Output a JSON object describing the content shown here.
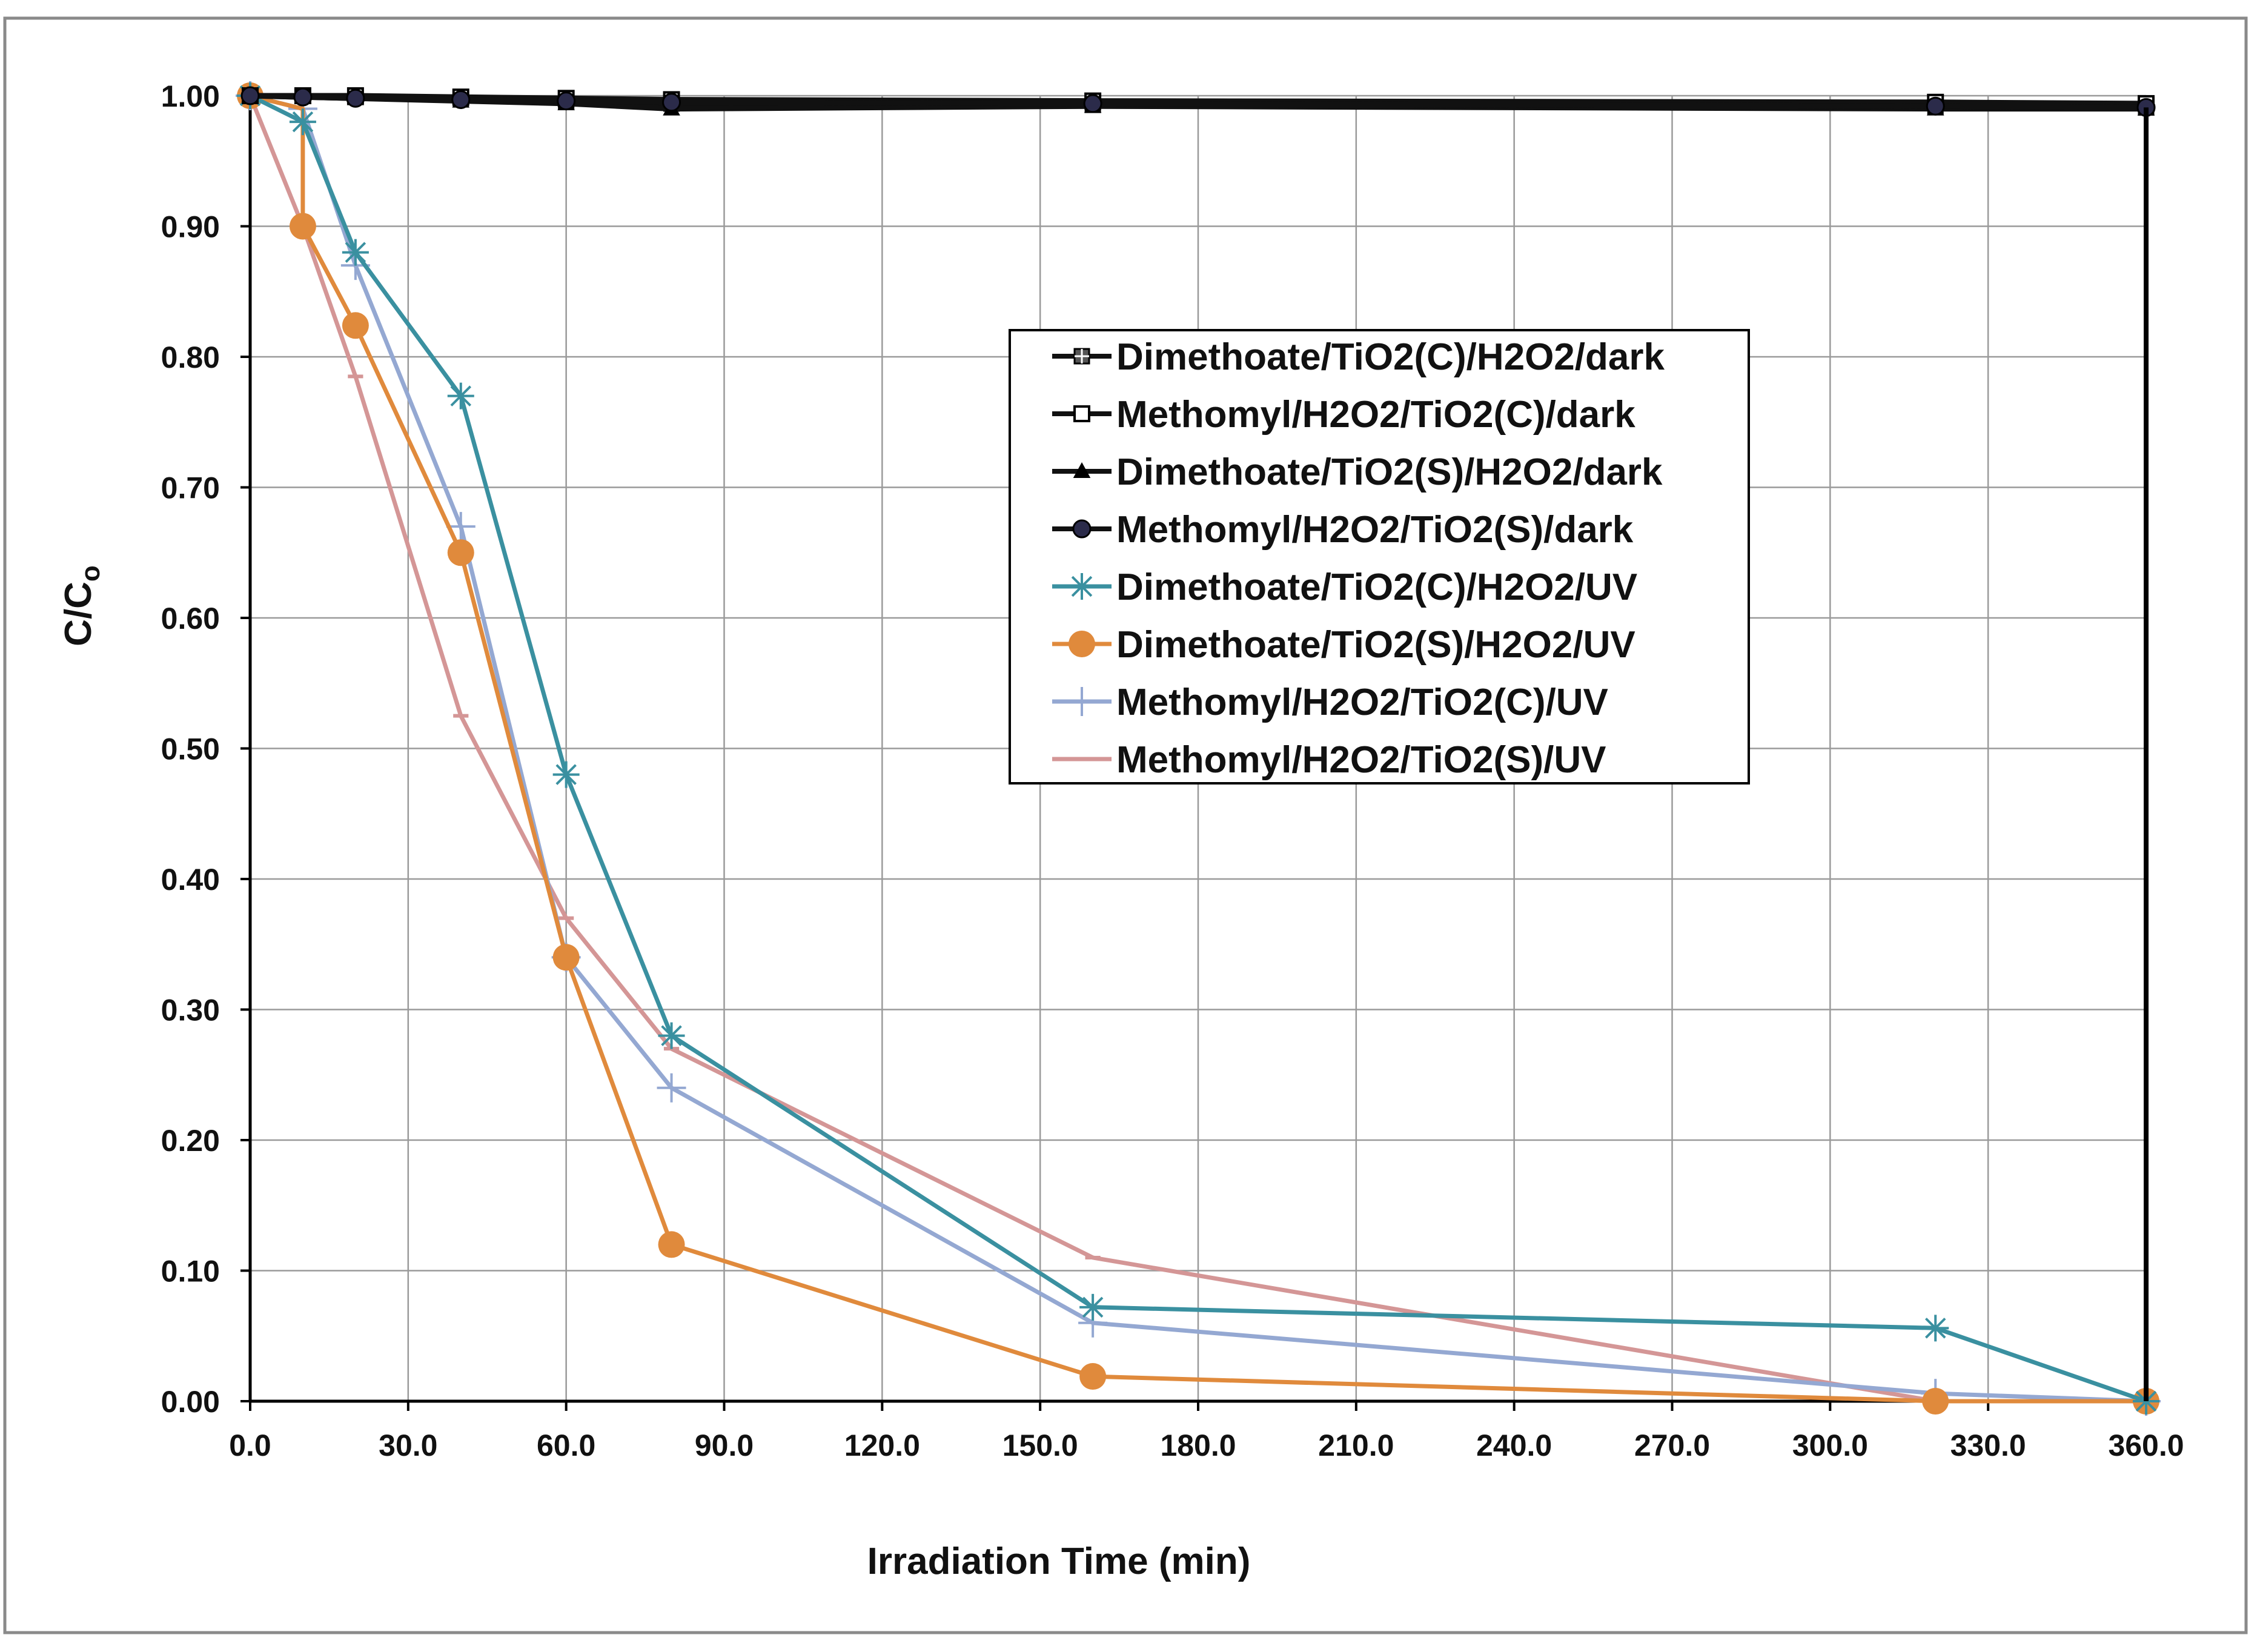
{
  "chart_data": {
    "type": "line",
    "title": "",
    "xlabel": "Irradiation Time (min)",
    "ylabel_main": "C/C",
    "ylabel_sub": "o",
    "xlim": [
      0,
      360
    ],
    "ylim": [
      0,
      1.0
    ],
    "xticks": [
      0,
      30,
      60,
      90,
      120,
      150,
      180,
      210,
      240,
      270,
      300,
      330,
      360
    ],
    "xtick_labels": [
      "0.0",
      "30.0",
      "60.0",
      "90.0",
      "120.0",
      "150.0",
      "180.0",
      "210.0",
      "240.0",
      "270.0",
      "300.0",
      "330.0",
      "360.0"
    ],
    "yticks": [
      0,
      0.1,
      0.2,
      0.3,
      0.4,
      0.5,
      0.6,
      0.7,
      0.8,
      0.9,
      1.0
    ],
    "ytick_labels": [
      "0.00",
      "0.10",
      "0.20",
      "0.30",
      "0.40",
      "0.50",
      "0.60",
      "0.70",
      "0.80",
      "0.90",
      "1.00"
    ],
    "grid": true,
    "legend_position": "center-right",
    "series": [
      {
        "name": "Dimethoate/TiO2(C)/H2O2/dark",
        "color": "#111111",
        "marker": "square-cross",
        "x": [
          0,
          10,
          20,
          40,
          60,
          80,
          160,
          320,
          360
        ],
        "y": [
          1.0,
          1.0,
          0.999,
          0.998,
          0.996,
          0.994,
          0.993,
          0.992,
          0.991
        ]
      },
      {
        "name": "Methomyl/H2O2/TiO2(C)/dark",
        "color": "#111111",
        "marker": "open-square",
        "x": [
          0,
          10,
          20,
          40,
          60,
          80,
          160,
          320,
          360
        ],
        "y": [
          1.0,
          1.0,
          1.0,
          0.999,
          0.998,
          0.997,
          0.996,
          0.995,
          0.994
        ]
      },
      {
        "name": "Dimethoate/TiO2(S)/H2O2/dark",
        "color": "#111111",
        "marker": "triangle",
        "x": [
          0,
          10,
          20,
          40,
          60,
          80,
          160,
          320,
          360
        ],
        "y": [
          1.0,
          0.999,
          0.998,
          0.996,
          0.994,
          0.99,
          0.992,
          0.99,
          0.99
        ]
      },
      {
        "name": "Methomyl/H2O2/TiO2(S)/dark",
        "color": "#111111",
        "marker": "dot",
        "x": [
          0,
          10,
          20,
          40,
          60,
          80,
          160,
          320,
          360
        ],
        "y": [
          1.0,
          0.999,
          0.998,
          0.997,
          0.996,
          0.995,
          0.994,
          0.992,
          0.991
        ]
      },
      {
        "name": "Dimethoate/TiO2(C)/H2O2/UV",
        "color": "#3a90a0",
        "marker": "asterisk",
        "x": [
          0,
          10,
          20,
          40,
          60,
          80,
          160,
          320,
          360
        ],
        "y": [
          1.0,
          0.98,
          0.88,
          0.77,
          0.48,
          0.28,
          0.072,
          0.056,
          0.0
        ]
      },
      {
        "name": "Dimethoate/TiO2(S)/H2O2/UV",
        "color": "#e08a3c",
        "marker": "big-dot",
        "x": [
          0,
          10,
          10,
          20,
          40,
          60,
          80,
          160,
          320,
          360
        ],
        "y": [
          1.0,
          0.99,
          0.9,
          0.824,
          0.65,
          0.34,
          0.12,
          0.019,
          0.0,
          0.0
        ]
      },
      {
        "name": "Methomyl/H2O2/TiO2(C)/UV",
        "color": "#94a8d2",
        "marker": "plus",
        "x": [
          0,
          10,
          20,
          40,
          60,
          80,
          160,
          320,
          360
        ],
        "y": [
          1.0,
          0.99,
          0.87,
          0.67,
          0.34,
          0.24,
          0.06,
          0.006,
          0.0
        ]
      },
      {
        "name": "Methomyl/H2O2/TiO2(S)/UV",
        "color": "#d49696",
        "marker": "dash",
        "x": [
          0,
          10,
          20,
          40,
          60,
          80,
          160,
          320,
          360
        ],
        "y": [
          1.0,
          0.9,
          0.785,
          0.525,
          0.37,
          0.27,
          0.11,
          0.0,
          0.0
        ]
      }
    ]
  }
}
